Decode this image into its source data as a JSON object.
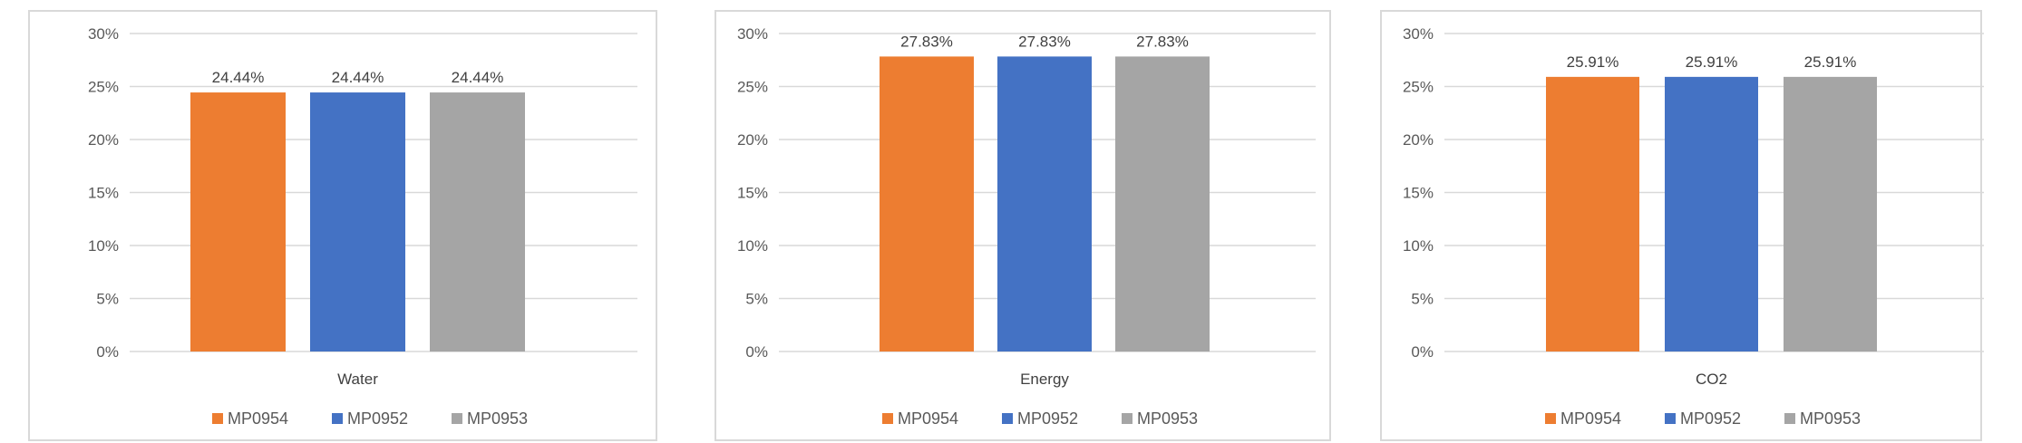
{
  "colors": {
    "MP0954": "#ed7d31",
    "MP0952": "#4472c4",
    "MP0953": "#a5a5a5",
    "gridline": "#d9d9d9",
    "border": "#d9d9d9"
  },
  "chart_data": [
    {
      "type": "bar",
      "title": "",
      "xlabel": "",
      "ylabel": "",
      "categories": [
        "Water"
      ],
      "series": [
        {
          "name": "MP0954",
          "values": [
            24.44
          ],
          "label": "24.44%"
        },
        {
          "name": "MP0952",
          "values": [
            24.44
          ],
          "label": "24.44%"
        },
        {
          "name": "MP0953",
          "values": [
            24.44
          ],
          "label": "24.44%"
        }
      ],
      "ylim": [
        0,
        30
      ],
      "yticks": [
        "0%",
        "5%",
        "10%",
        "15%",
        "20%",
        "25%",
        "30%"
      ],
      "ytick_values": [
        0,
        5,
        10,
        15,
        20,
        25,
        30
      ],
      "grid": true,
      "legend_position": "bottom"
    },
    {
      "type": "bar",
      "title": "",
      "xlabel": "",
      "ylabel": "",
      "categories": [
        "Energy"
      ],
      "series": [
        {
          "name": "MP0954",
          "values": [
            27.83
          ],
          "label": "27.83%"
        },
        {
          "name": "MP0952",
          "values": [
            27.83
          ],
          "label": "27.83%"
        },
        {
          "name": "MP0953",
          "values": [
            27.83
          ],
          "label": "27.83%"
        }
      ],
      "ylim": [
        0,
        30
      ],
      "yticks": [
        "0%",
        "5%",
        "10%",
        "15%",
        "20%",
        "25%",
        "30%"
      ],
      "ytick_values": [
        0,
        5,
        10,
        15,
        20,
        25,
        30
      ],
      "grid": true,
      "legend_position": "bottom"
    },
    {
      "type": "bar",
      "title": "",
      "xlabel": "",
      "ylabel": "",
      "categories": [
        "CO2"
      ],
      "series": [
        {
          "name": "MP0954",
          "values": [
            25.91
          ],
          "label": "25.91%"
        },
        {
          "name": "MP0952",
          "values": [
            25.91
          ],
          "label": "25.91%"
        },
        {
          "name": "MP0953",
          "values": [
            25.91
          ],
          "label": "25.91%"
        }
      ],
      "ylim": [
        0,
        30
      ],
      "yticks": [
        "0%",
        "5%",
        "10%",
        "15%",
        "20%",
        "25%",
        "30%"
      ],
      "ytick_values": [
        0,
        5,
        10,
        15,
        20,
        25,
        30
      ],
      "grid": true,
      "legend_position": "bottom"
    }
  ]
}
